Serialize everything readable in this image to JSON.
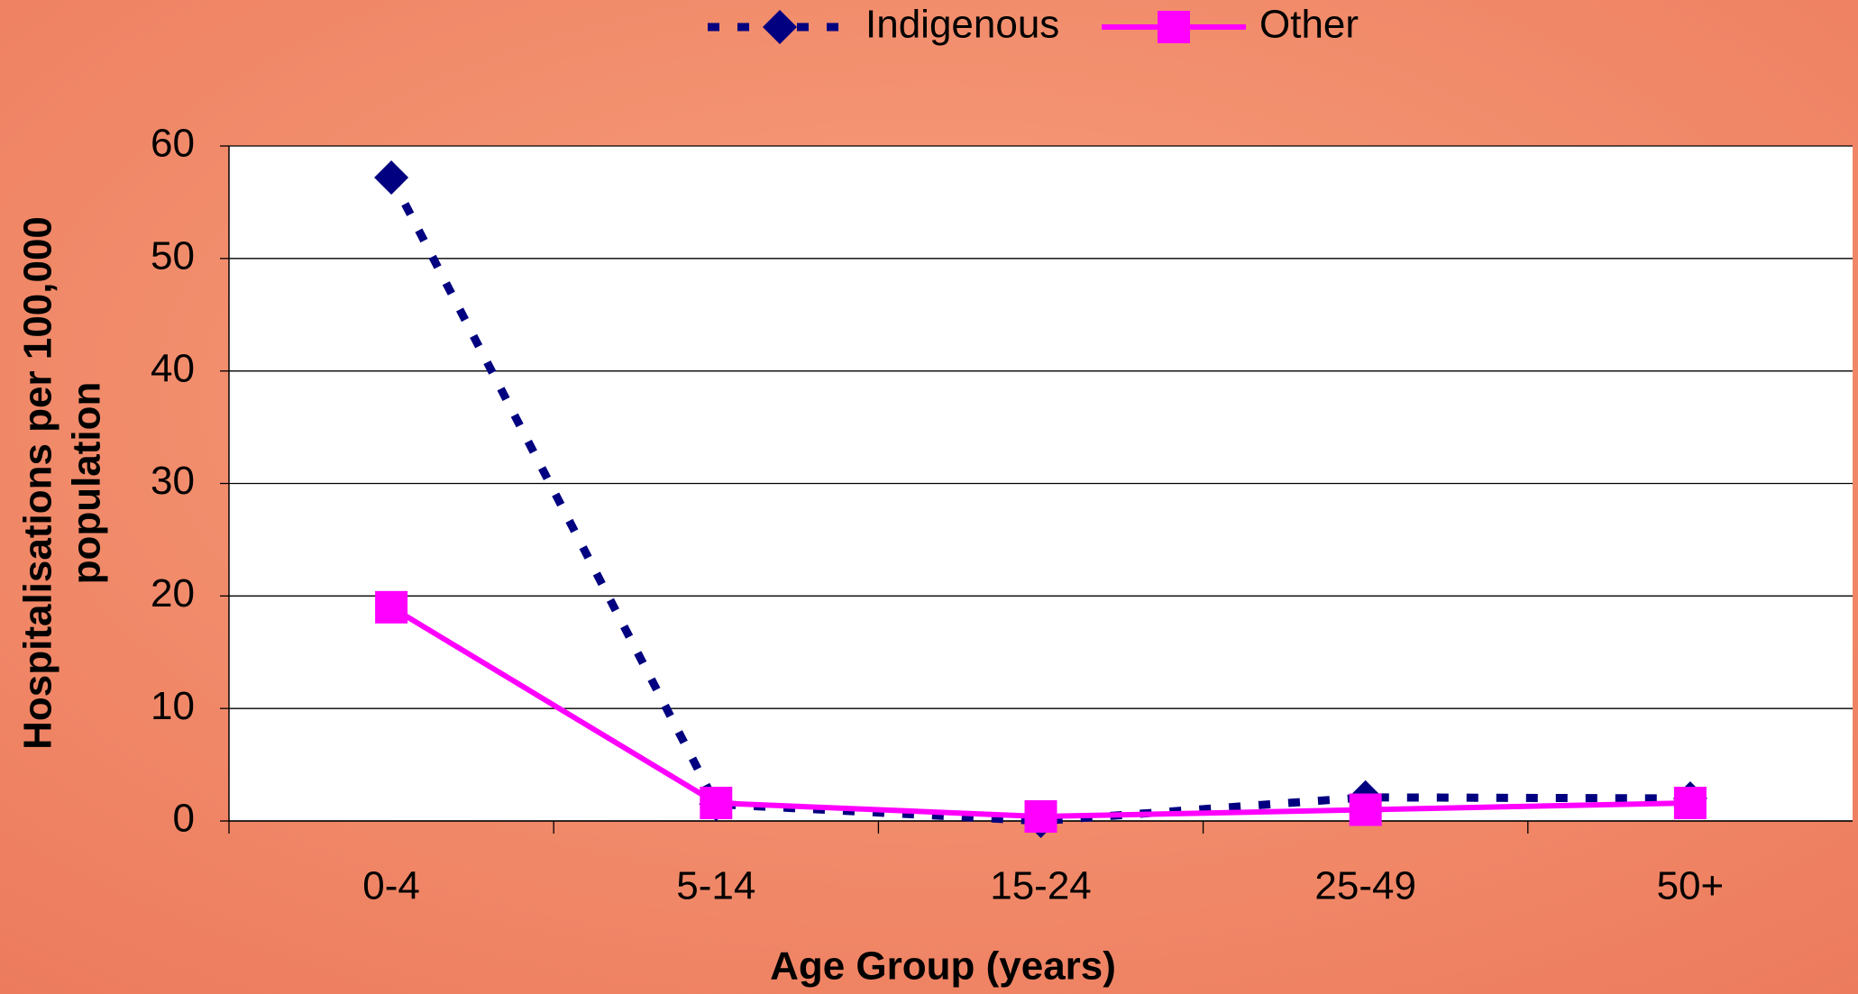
{
  "chart_data": {
    "type": "line",
    "categories": [
      "0-4",
      "5-14",
      "15-24",
      "25-49",
      "50+"
    ],
    "series": [
      {
        "name": "Indigenous",
        "color": "#000080",
        "dash": true,
        "marker": "diamond",
        "values": [
          57.2,
          1.5,
          0,
          2.1,
          2.0
        ]
      },
      {
        "name": "Other",
        "color": "#ff00ff",
        "dash": false,
        "marker": "square",
        "values": [
          19,
          1.6,
          0.4,
          1.0,
          1.6
        ]
      }
    ],
    "ylim": [
      0,
      60
    ],
    "yticks": [
      0,
      10,
      20,
      30,
      40,
      50,
      60
    ],
    "grid": true,
    "x_label": "Age Group (years)",
    "y_label": [
      "Hospitalisations per 100,000",
      "population"
    ],
    "legend": "top"
  }
}
